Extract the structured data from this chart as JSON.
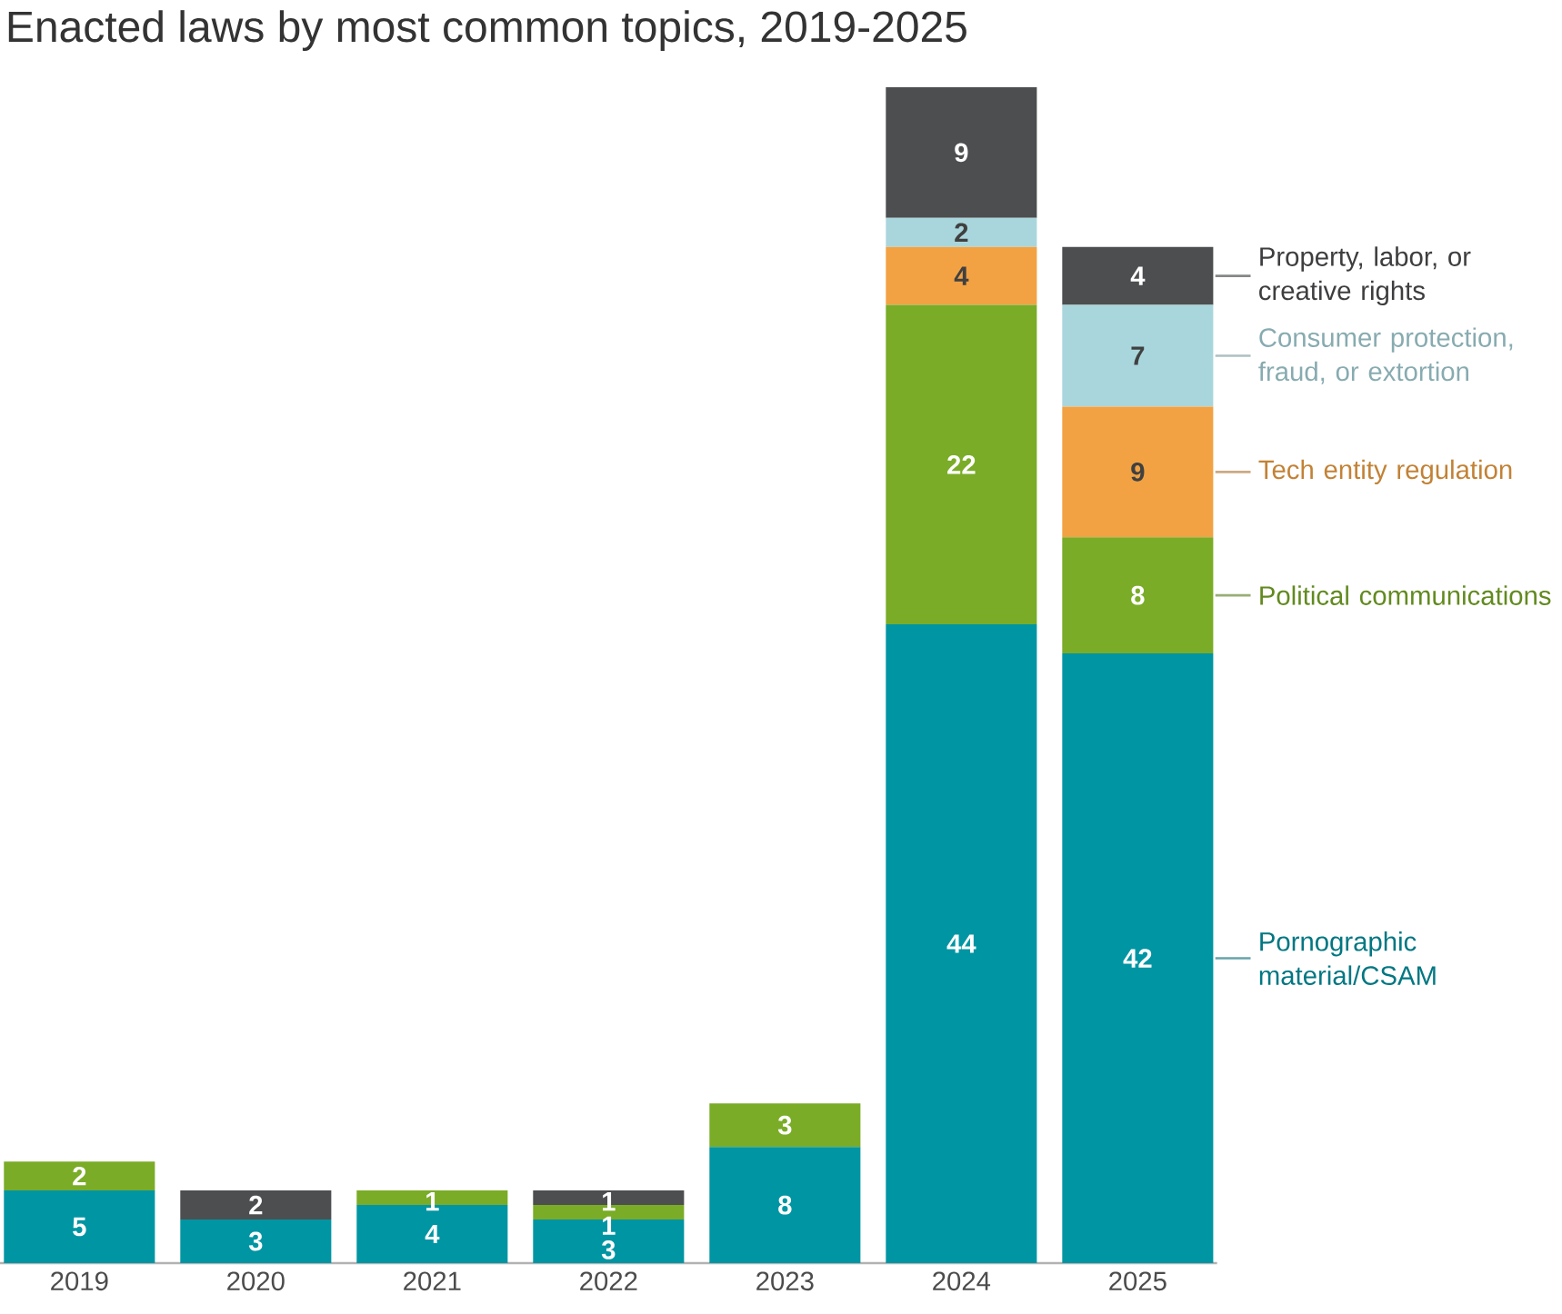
{
  "chart_data": {
    "type": "bar",
    "title": "Enacted laws by most common topics, 2019-2025",
    "categories": [
      "2019",
      "2020",
      "2021",
      "2022",
      "2023",
      "2024",
      "2025"
    ],
    "stacked": true,
    "data_labels": true,
    "series": [
      {
        "name": "Pornographic material/CSAM",
        "color": "#0095a3",
        "values": [
          5,
          3,
          4,
          3,
          8,
          44,
          42
        ]
      },
      {
        "name": "Political communications",
        "color": "#7aac27",
        "values": [
          2,
          null,
          1,
          1,
          3,
          22,
          8
        ]
      },
      {
        "name": "Tech entity regulation",
        "color": "#f2a243",
        "values": [
          null,
          null,
          null,
          null,
          null,
          4,
          9
        ]
      },
      {
        "name": "Consumer protection, fraud, or extortion",
        "color": "#a9d6dc",
        "values": [
          null,
          null,
          null,
          null,
          null,
          2,
          7
        ]
      },
      {
        "name": "Property, labor, or creative rights",
        "color": "#4d4e50",
        "values": [
          null,
          2,
          null,
          1,
          null,
          9,
          4
        ]
      }
    ]
  }
}
